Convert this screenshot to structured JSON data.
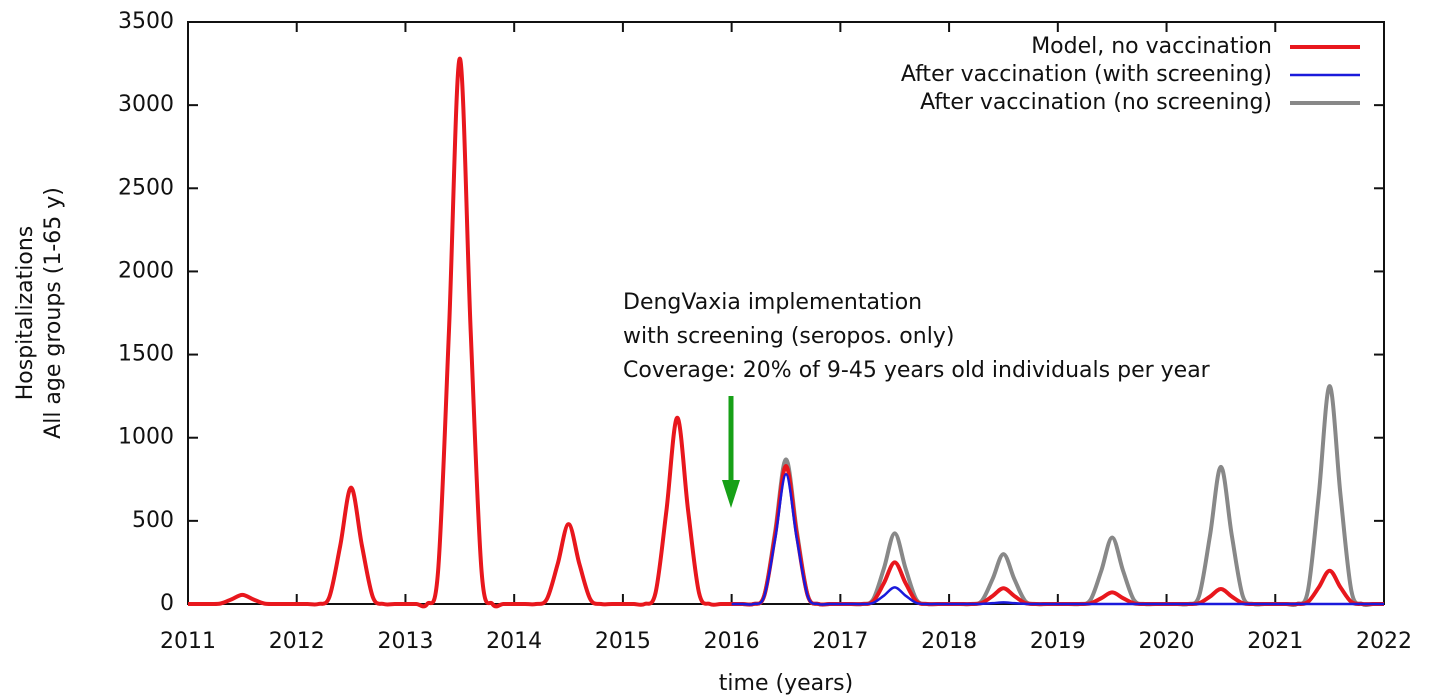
{
  "chart_data": {
    "type": "line",
    "ylabel": [
      "Hospitalizations",
      "All age groups (1-65 y)"
    ],
    "xlabel": "time (years)",
    "annotation": [
      "DengVaxia implementation",
      "with screening  (seropos. only)",
      "Coverage: 20% of 9-45 years old individuals per year"
    ],
    "xlim": [
      2011,
      2022
    ],
    "ylim": [
      0,
      3500
    ],
    "xticks": [
      2011,
      2012,
      2013,
      2014,
      2015,
      2016,
      2017,
      2018,
      2019,
      2020,
      2021,
      2022
    ],
    "yticks": [
      0,
      500,
      1000,
      1500,
      2000,
      2500,
      3000,
      3500
    ],
    "legend": "upper-right",
    "x": [
      2011,
      2011.1,
      2011.2,
      2011.3,
      2011.4,
      2011.5,
      2011.6,
      2011.7,
      2011.8,
      2011.9,
      2012,
      2012.1,
      2012.2,
      2012.3,
      2012.4,
      2012.5,
      2012.6,
      2012.7,
      2012.8,
      2012.9,
      2013,
      2013.1,
      2013.2,
      2013.3,
      2013.4,
      2013.5,
      2013.6,
      2013.7,
      2013.8,
      2013.9,
      2014,
      2014.1,
      2014.2,
      2014.3,
      2014.4,
      2014.5,
      2014.6,
      2014.7,
      2014.8,
      2014.9,
      2015,
      2015.1,
      2015.2,
      2015.3,
      2015.4,
      2015.5,
      2015.6,
      2015.7,
      2015.8,
      2015.9,
      2016,
      2016.1,
      2016.2,
      2016.3,
      2016.4,
      2016.5,
      2016.6,
      2016.7,
      2016.8,
      2016.9,
      2017,
      2017.1,
      2017.2,
      2017.3,
      2017.4,
      2017.5,
      2017.6,
      2017.7,
      2017.8,
      2017.9,
      2018,
      2018.1,
      2018.2,
      2018.3,
      2018.4,
      2018.5,
      2018.6,
      2018.7,
      2018.8,
      2018.9,
      2019,
      2019.1,
      2019.2,
      2019.3,
      2019.4,
      2019.5,
      2019.6,
      2019.7,
      2019.8,
      2019.9,
      2020,
      2020.1,
      2020.2,
      2020.3,
      2020.4,
      2020.5,
      2020.6,
      2020.7,
      2020.8,
      2020.9,
      2021,
      2021.1,
      2021.2,
      2021.3,
      2021.4,
      2021.5,
      2021.6,
      2021.7,
      2021.8,
      2021.9,
      2022
    ],
    "series": [
      {
        "name": "Model, no vaccination",
        "color": "#e8171d",
        "values": [
          0,
          0,
          0,
          3,
          28,
          55,
          28,
          3,
          0,
          0,
          0,
          0,
          0,
          42,
          350,
          700,
          350,
          42,
          0,
          0,
          0,
          0,
          0,
          197,
          1640,
          3280,
          1640,
          197,
          0,
          0,
          0,
          0,
          0,
          29,
          240,
          480,
          240,
          29,
          0,
          0,
          0,
          0,
          0,
          67,
          560,
          1120,
          560,
          67,
          0,
          0,
          0,
          0,
          0,
          50,
          415,
          830,
          415,
          50,
          0,
          0,
          0,
          0,
          0,
          15,
          125,
          250,
          125,
          15,
          0,
          0,
          0,
          0,
          0,
          6,
          48,
          95,
          48,
          6,
          0,
          0,
          0,
          0,
          0,
          4,
          35,
          70,
          35,
          4,
          0,
          0,
          0,
          0,
          0,
          5,
          45,
          90,
          45,
          5,
          0,
          0,
          0,
          0,
          0,
          12,
          100,
          200,
          100,
          12,
          0,
          0,
          0
        ]
      },
      {
        "name": "After vaccination (with screening)",
        "color": "#1a1adb",
        "values": [
          null,
          null,
          null,
          null,
          null,
          null,
          null,
          null,
          null,
          null,
          null,
          null,
          null,
          null,
          null,
          null,
          null,
          null,
          null,
          null,
          null,
          null,
          null,
          null,
          null,
          null,
          null,
          null,
          null,
          null,
          null,
          null,
          null,
          null,
          null,
          null,
          null,
          null,
          null,
          null,
          null,
          null,
          null,
          null,
          null,
          null,
          null,
          null,
          null,
          null,
          0,
          0,
          0,
          47,
          390,
          780,
          390,
          47,
          0,
          0,
          0,
          0,
          0,
          6,
          50,
          100,
          50,
          6,
          0,
          0,
          0,
          0,
          0,
          1,
          5,
          10,
          5,
          1,
          0,
          0,
          0,
          0,
          0,
          0,
          0,
          0,
          0,
          0,
          0,
          0,
          0,
          0,
          0,
          0,
          0,
          0,
          0,
          0,
          0,
          0,
          0,
          0,
          0,
          0,
          0,
          0,
          0,
          0,
          0,
          0,
          0
        ]
      },
      {
        "name": "After vaccination (no screening)",
        "color": "#888888",
        "values": [
          null,
          null,
          null,
          null,
          null,
          null,
          null,
          null,
          null,
          null,
          null,
          null,
          null,
          null,
          null,
          null,
          null,
          null,
          null,
          null,
          null,
          null,
          null,
          null,
          null,
          null,
          null,
          null,
          null,
          null,
          null,
          null,
          null,
          null,
          null,
          null,
          null,
          null,
          null,
          null,
          null,
          null,
          null,
          null,
          null,
          null,
          null,
          null,
          null,
          null,
          0,
          0,
          0,
          52,
          435,
          870,
          435,
          52,
          0,
          0,
          0,
          0,
          0,
          26,
          213,
          425,
          213,
          26,
          0,
          0,
          0,
          0,
          0,
          18,
          150,
          300,
          150,
          18,
          0,
          0,
          0,
          0,
          0,
          24,
          200,
          400,
          200,
          24,
          0,
          0,
          0,
          0,
          0,
          50,
          413,
          825,
          413,
          50,
          0,
          0,
          0,
          0,
          0,
          79,
          655,
          1310,
          655,
          79,
          0,
          0,
          0
        ]
      }
    ]
  }
}
